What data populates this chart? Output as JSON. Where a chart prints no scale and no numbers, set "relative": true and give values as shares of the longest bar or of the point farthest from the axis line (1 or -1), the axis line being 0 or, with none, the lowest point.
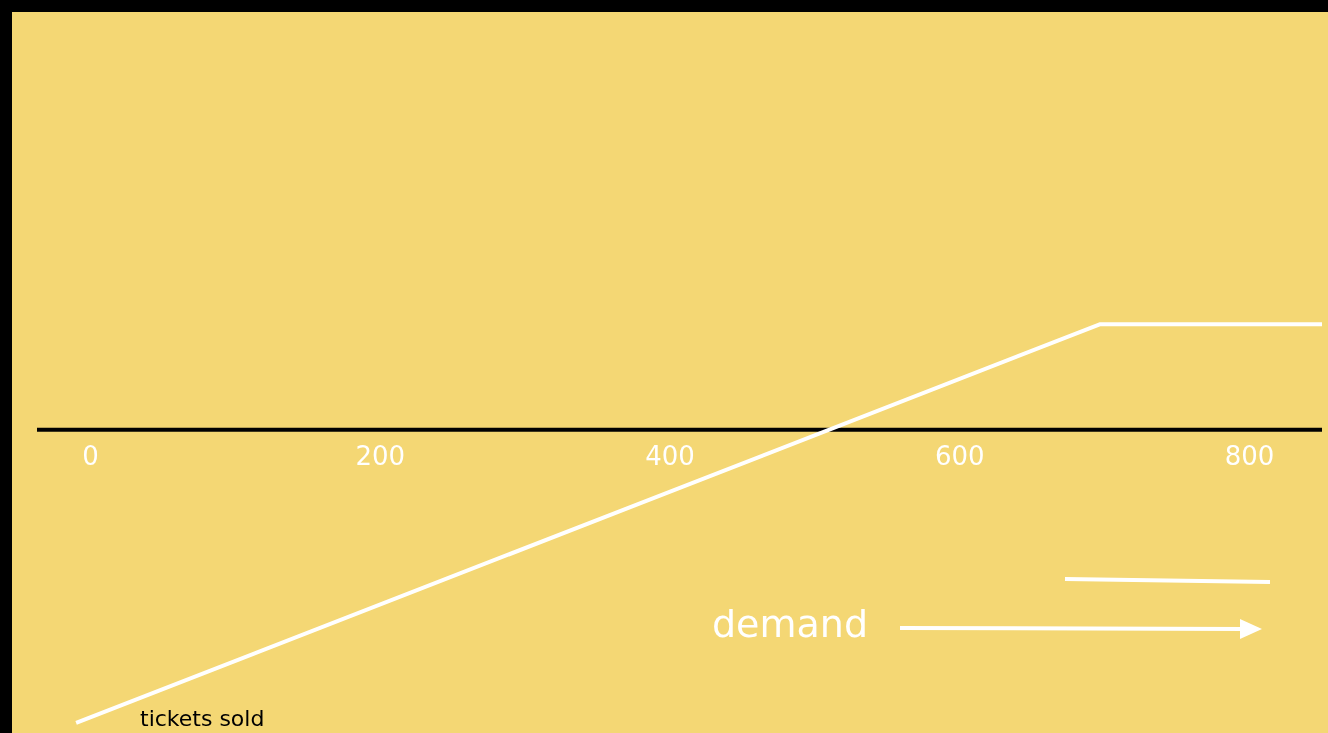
{
  "chart_data": {
    "type": "line",
    "relative": true,
    "xlabel": "tickets sold",
    "series": [
      {
        "color": "#ffffff",
        "x": [
          -10,
          697,
          850
        ],
        "values": [
          -1,
          0.36,
          0.36
        ]
      }
    ],
    "xlim": [
      -37,
      850
    ],
    "xticks": [
      0,
      200,
      400,
      600,
      800
    ],
    "annotations": [
      "demand"
    ],
    "marker": "none",
    "line_style": "solid"
  }
}
